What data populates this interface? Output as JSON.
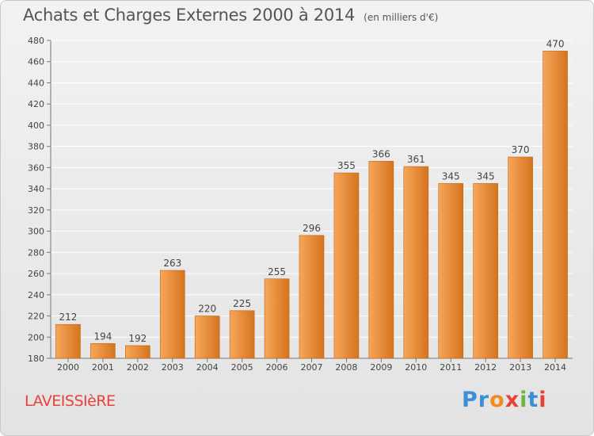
{
  "header": {
    "title": "Achats et Charges Externes 2000 à 2014",
    "unit": "(en milliers d'€)"
  },
  "commune": "LAVEISSIèRE",
  "logo": {
    "text": "Proxiti",
    "letter_colors": [
      "#3a8fd6",
      "#3a8fd6",
      "#f28c1e",
      "#e8413b",
      "#6db33f",
      "#3a8fd6",
      "#e8413b"
    ]
  },
  "colors": {
    "bar_light": "#f7a65a",
    "bar_dark": "#d4741e",
    "bar_stroke": "#c0661a",
    "grid": "#ffffff",
    "text": "#444444",
    "commune": "#e8413b"
  },
  "chart_data": {
    "type": "bar",
    "title": "Achats et Charges Externes 2000 à 2014",
    "subtitle": "(en milliers d'€)",
    "categories": [
      "2000",
      "2001",
      "2002",
      "2003",
      "2004",
      "2005",
      "2006",
      "2007",
      "2008",
      "2009",
      "2010",
      "2011",
      "2012",
      "2013",
      "2014"
    ],
    "values": [
      212,
      194,
      192,
      263,
      220,
      225,
      255,
      296,
      355,
      366,
      361,
      345,
      345,
      370,
      470
    ],
    "ylim": [
      180,
      480
    ],
    "yticks": [
      180,
      200,
      220,
      240,
      260,
      280,
      300,
      320,
      340,
      360,
      380,
      400,
      420,
      440,
      460,
      480
    ],
    "grid": true,
    "data_labels": true
  }
}
